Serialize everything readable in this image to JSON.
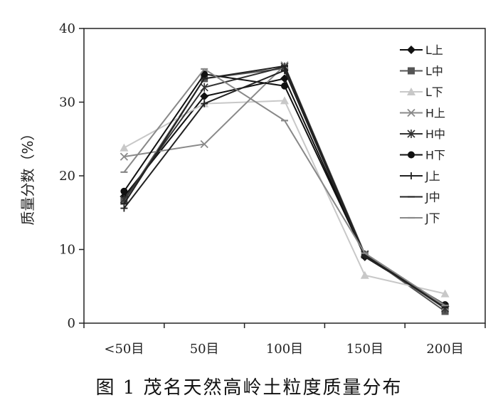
{
  "chart_data": {
    "type": "line",
    "categories": [
      "<50目",
      "50目",
      "100目",
      "150目",
      "200目"
    ],
    "ylabel": "质量分数（%）",
    "xlabel": "",
    "ylim": [
      0,
      40
    ],
    "yticks": [
      0,
      10,
      20,
      30,
      40
    ],
    "grid": false,
    "legend_position": "right",
    "series": [
      {
        "name": "L上",
        "values": [
          17.2,
          30.8,
          33.2,
          9.0,
          2.3
        ],
        "color": "#111111",
        "marker": "diamond"
      },
      {
        "name": "L中",
        "values": [
          16.6,
          33.2,
          34.6,
          9.3,
          1.6
        ],
        "color": "#555555",
        "marker": "square"
      },
      {
        "name": "L下",
        "values": [
          23.8,
          29.8,
          30.2,
          6.5,
          4.0
        ],
        "color": "#c8c8c8",
        "marker": "triangle"
      },
      {
        "name": "H上",
        "values": [
          22.6,
          24.3,
          35.0,
          9.4,
          2.2
        ],
        "color": "#8a8a8a",
        "marker": "x"
      },
      {
        "name": "H中",
        "values": [
          16.8,
          32.0,
          34.8,
          9.3,
          2.0
        ],
        "color": "#333333",
        "marker": "asterisk"
      },
      {
        "name": "H下",
        "values": [
          17.9,
          33.8,
          32.2,
          9.1,
          2.5
        ],
        "color": "#111111",
        "marker": "circle"
      },
      {
        "name": "J上",
        "values": [
          15.6,
          29.8,
          34.3,
          9.0,
          2.5
        ],
        "color": "#222222",
        "marker": "plus"
      },
      {
        "name": "J中",
        "values": [
          16.2,
          33.2,
          34.9,
          9.2,
          2.1
        ],
        "color": "#222222",
        "marker": "dash"
      },
      {
        "name": "J下",
        "values": [
          20.5,
          34.5,
          27.5,
          9.5,
          2.4
        ],
        "color": "#888888",
        "marker": "dash"
      }
    ]
  },
  "caption": "图 1  茂名天然高岭土粒度质量分布"
}
